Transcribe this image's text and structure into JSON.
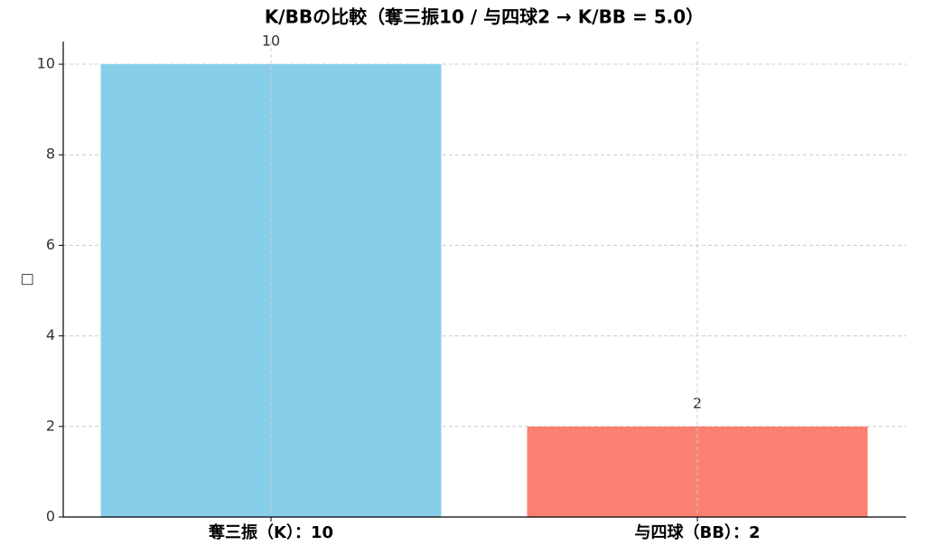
{
  "chart_data": {
    "type": "bar",
    "title": "K/BBの比較（奪三振10 / 与四球2 → K/BB = 5.0）",
    "ylabel": "□",
    "categories": [
      "奪三振（K）：10",
      "与四球（BB）：2"
    ],
    "values": [
      10,
      2
    ],
    "colors": [
      "#87ceeb",
      "#fa8072"
    ],
    "ylim": [
      0,
      10.5
    ],
    "yticks": [
      0,
      2,
      4,
      6,
      8,
      10
    ],
    "grid": true
  }
}
